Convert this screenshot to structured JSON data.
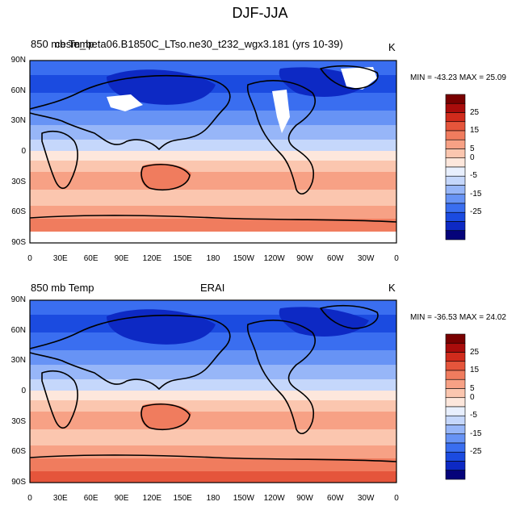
{
  "main_title": "DJF-JJA",
  "panels": [
    {
      "left_string": "850 mb Temp",
      "center_string": "cesm_beta06.B1850C_LTso.ne30_t232_wgx3.181 (yrs 10-39)",
      "right_string": "K",
      "min_max": "MIN = -43.23 MAX =  25.09"
    },
    {
      "left_string": "850 mb Temp",
      "center_string": "ERAI",
      "right_string": "K",
      "min_max": "MIN = -36.53 MAX =  24.02"
    }
  ],
  "y_ticks": [
    "90N",
    "60N",
    "30N",
    "0",
    "30S",
    "60S",
    "90S"
  ],
  "x_ticks": [
    "0",
    "30E",
    "60E",
    "90E",
    "120E",
    "150E",
    "180",
    "150W",
    "120W",
    "90W",
    "60W",
    "30W",
    "0"
  ],
  "colorbar": {
    "labels": [
      "25",
      "15",
      "5",
      "0",
      "-5",
      "-15",
      "-25"
    ],
    "levels": [
      -30,
      -25,
      -20,
      -15,
      -10,
      -5,
      -2.5,
      0,
      2.5,
      5,
      10,
      15,
      20,
      25,
      30
    ],
    "colors": [
      "#05037a",
      "#0d29c4",
      "#1b4be0",
      "#3a6ef0",
      "#6793f5",
      "#97b6f8",
      "#c5d7fb",
      "#e8effd",
      "#fde7dc",
      "#fbc6af",
      "#f7a185",
      "#f07c5e",
      "#e5553b",
      "#d02b1c",
      "#a90c0b",
      "#790000"
    ]
  }
}
